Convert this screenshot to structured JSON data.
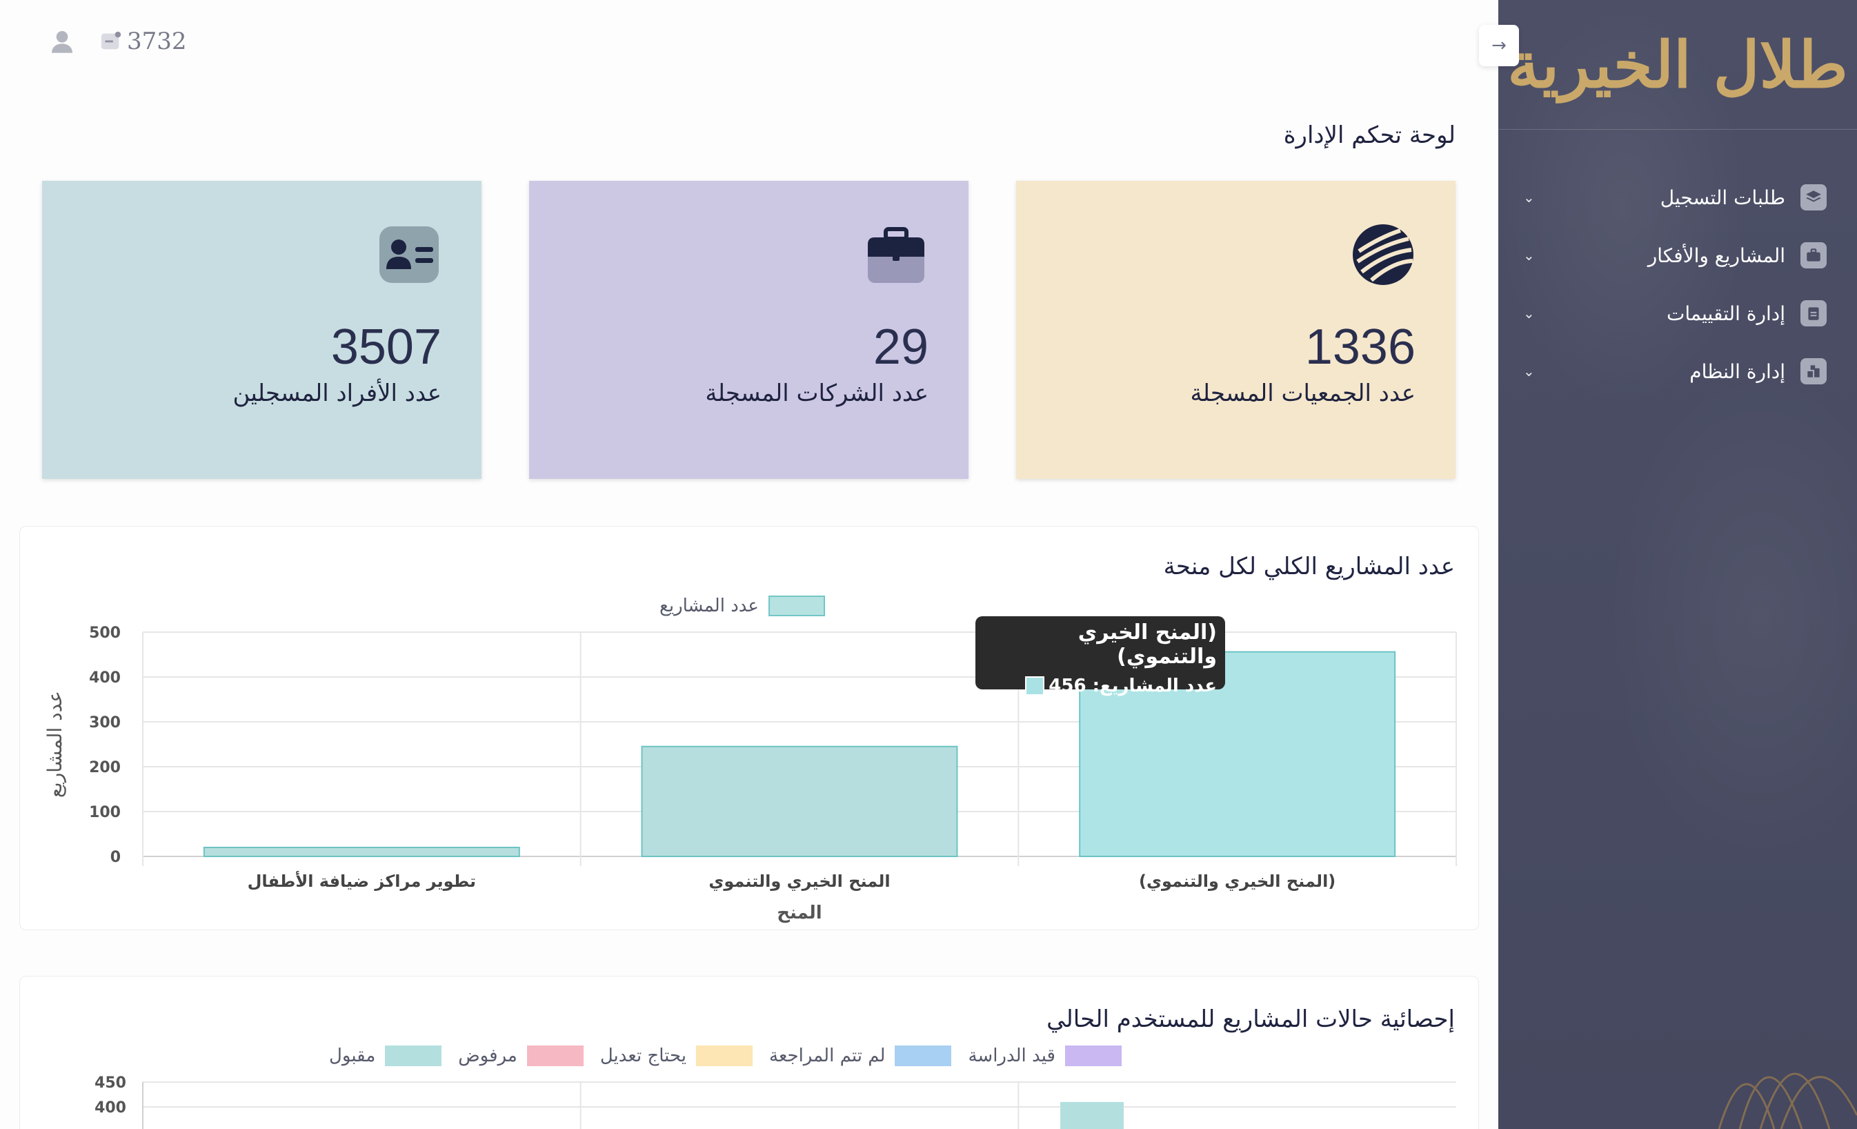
{
  "sidebar": {
    "logo": "طلال الخيرية",
    "items": [
      {
        "label": "طلبات التسجيل",
        "icon": "layers-icon"
      },
      {
        "label": "المشاريع والأفكار",
        "icon": "briefcase-icon"
      },
      {
        "label": "إدارة التقييمات",
        "icon": "clipboard-icon"
      },
      {
        "label": "إدارة النظام",
        "icon": "system-icon"
      }
    ],
    "chevron": "⌄"
  },
  "topbar": {
    "balance": "3732",
    "collapse_icon": "→"
  },
  "page_title": "لوحة تحكم الإدارة",
  "cards": [
    {
      "value": "1336",
      "label": "عدد الجمعيات المسجلة",
      "bg": "#f5e7cc",
      "icon": "network-icon"
    },
    {
      "value": "29",
      "label": "عدد الشركات المسجلة",
      "bg": "#ccc8e4",
      "icon": "briefcase-icon"
    },
    {
      "value": "3507",
      "label": "عدد الأفراد المسجلين",
      "bg": "#c8dde1",
      "icon": "id-card-icon"
    }
  ],
  "chart1": {
    "title": "عدد المشاريع الكلي لكل منحة",
    "tooltip": {
      "title": "(المنح الخيري والتنموي)",
      "line": "عدد المشاريع: 456"
    }
  },
  "chart2": {
    "title": "إحصائية حالات المشاريع للمستخدم الحالي"
  },
  "chart_data": [
    {
      "type": "bar",
      "title": "عدد المشاريع الكلي لكل منحة",
      "categories": [
        "(المنح الخيري والتنموي)",
        "المنح الخيري والتنموي",
        "تطوير مراكز ضيافة الأطفال"
      ],
      "series": [
        {
          "name": "عدد المشاريع",
          "values": [
            456,
            245,
            20
          ],
          "color": "#a9e2e4"
        }
      ],
      "xlabel": "المنح",
      "ylabel": "عدد المشاريع",
      "ylim": [
        0,
        500
      ],
      "yticks": [
        "0",
        "100",
        "200",
        "300",
        "400",
        "500"
      ],
      "grid": true,
      "legend": "top-center"
    },
    {
      "type": "bar",
      "title": "إحصائية حالات المشاريع للمستخدم الحالي",
      "series": [
        {
          "name": "قيد الدراسة",
          "color": "#c9b8f2"
        },
        {
          "name": "لم تتم المراجعة",
          "color": "#a8d0f2"
        },
        {
          "name": "يحتاج تعديل",
          "color": "#fde5b4"
        },
        {
          "name": "مرفوض",
          "color": "#f6b8c2"
        },
        {
          "name": "مقبول",
          "color": "#b3e0df"
        }
      ],
      "yticks": [
        "450",
        "400"
      ],
      "first_visible_bar_value": 410,
      "legend": "top-center"
    }
  ]
}
